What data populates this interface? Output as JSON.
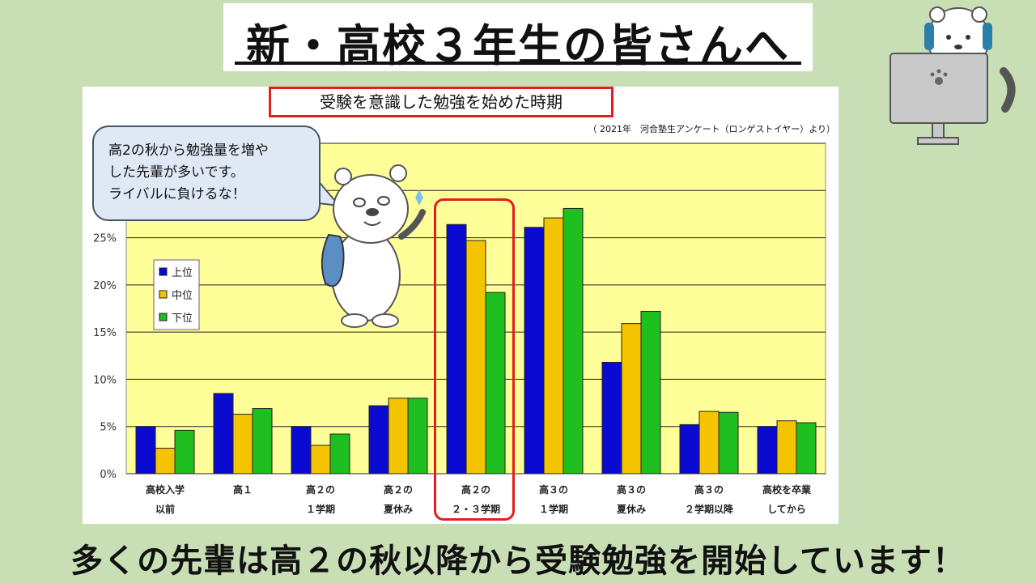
{
  "title": "新・高校３年生の皆さんへ",
  "bottom_message": "多くの先輩は高２の秋以降から受験勉強を開始しています！",
  "bubble": {
    "lines": [
      "高2の秋から勉強量を増や",
      "した先輩が多いです。",
      "ライバルに負けるな！"
    ]
  },
  "colors": {
    "background": "#c8dfb6",
    "plot_bg": "#ffff99",
    "upper": "#0a0ad0",
    "middle": "#f5c400",
    "lower": "#1fbf1f",
    "highlight": "#e02020"
  },
  "chart_data": {
    "type": "bar",
    "title": "受験を意識した勉強を始めた時期",
    "source": "（ 2021年　河合塾生アンケート（ロンゲストイヤー）より）",
    "categories": [
      [
        "高校入学",
        "以前"
      ],
      [
        "高１",
        ""
      ],
      [
        "高２の",
        "１学期"
      ],
      [
        "高２の",
        "夏休み"
      ],
      [
        "高２の",
        "２・３学期"
      ],
      [
        "高３の",
        "１学期"
      ],
      [
        "高３の",
        "夏休み"
      ],
      [
        "高３の",
        "２学期以降"
      ],
      [
        "高校を卒業",
        "してから"
      ]
    ],
    "series": [
      {
        "name": "上位",
        "values": [
          5.0,
          8.5,
          5.0,
          7.2,
          26.4,
          26.1,
          11.8,
          5.2,
          5.0
        ]
      },
      {
        "name": "中位",
        "values": [
          2.7,
          6.3,
          3.0,
          8.0,
          24.7,
          27.1,
          15.9,
          6.6,
          5.6
        ]
      },
      {
        "name": "下位",
        "values": [
          4.6,
          6.9,
          4.2,
          8.0,
          19.2,
          28.1,
          17.2,
          6.5,
          5.4
        ]
      }
    ],
    "ylim": [
      0,
      35
    ],
    "yticks": [
      "0%",
      "5%",
      "10%",
      "15%",
      "20%",
      "25%"
    ],
    "grid": true,
    "legend": "left",
    "highlight_category": "高２の２・３学期"
  }
}
